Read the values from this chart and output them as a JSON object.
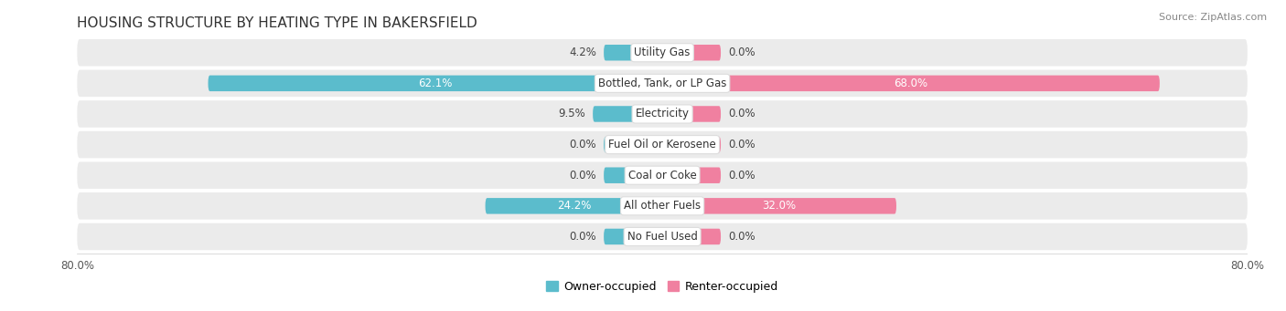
{
  "title": "HOUSING STRUCTURE BY HEATING TYPE IN BAKERSFIELD",
  "source": "Source: ZipAtlas.com",
  "categories": [
    "Utility Gas",
    "Bottled, Tank, or LP Gas",
    "Electricity",
    "Fuel Oil or Kerosene",
    "Coal or Coke",
    "All other Fuels",
    "No Fuel Used"
  ],
  "owner_values": [
    4.2,
    62.1,
    9.5,
    0.0,
    0.0,
    24.2,
    0.0
  ],
  "renter_values": [
    0.0,
    68.0,
    0.0,
    0.0,
    0.0,
    32.0,
    0.0
  ],
  "owner_color": "#5bbccc",
  "renter_color": "#f080a0",
  "owner_color_dark": "#2a9baa",
  "renter_color_dark": "#e8407a",
  "axis_min": -80.0,
  "axis_max": 80.0,
  "background_color": "#ffffff",
  "row_color": "#ebebeb",
  "title_fontsize": 11,
  "source_fontsize": 8,
  "legend_fontsize": 9,
  "label_fontsize": 8.5,
  "cat_fontsize": 8.5,
  "min_bar": 8.0,
  "legend_owner": "Owner-occupied",
  "legend_renter": "Renter-occupied"
}
